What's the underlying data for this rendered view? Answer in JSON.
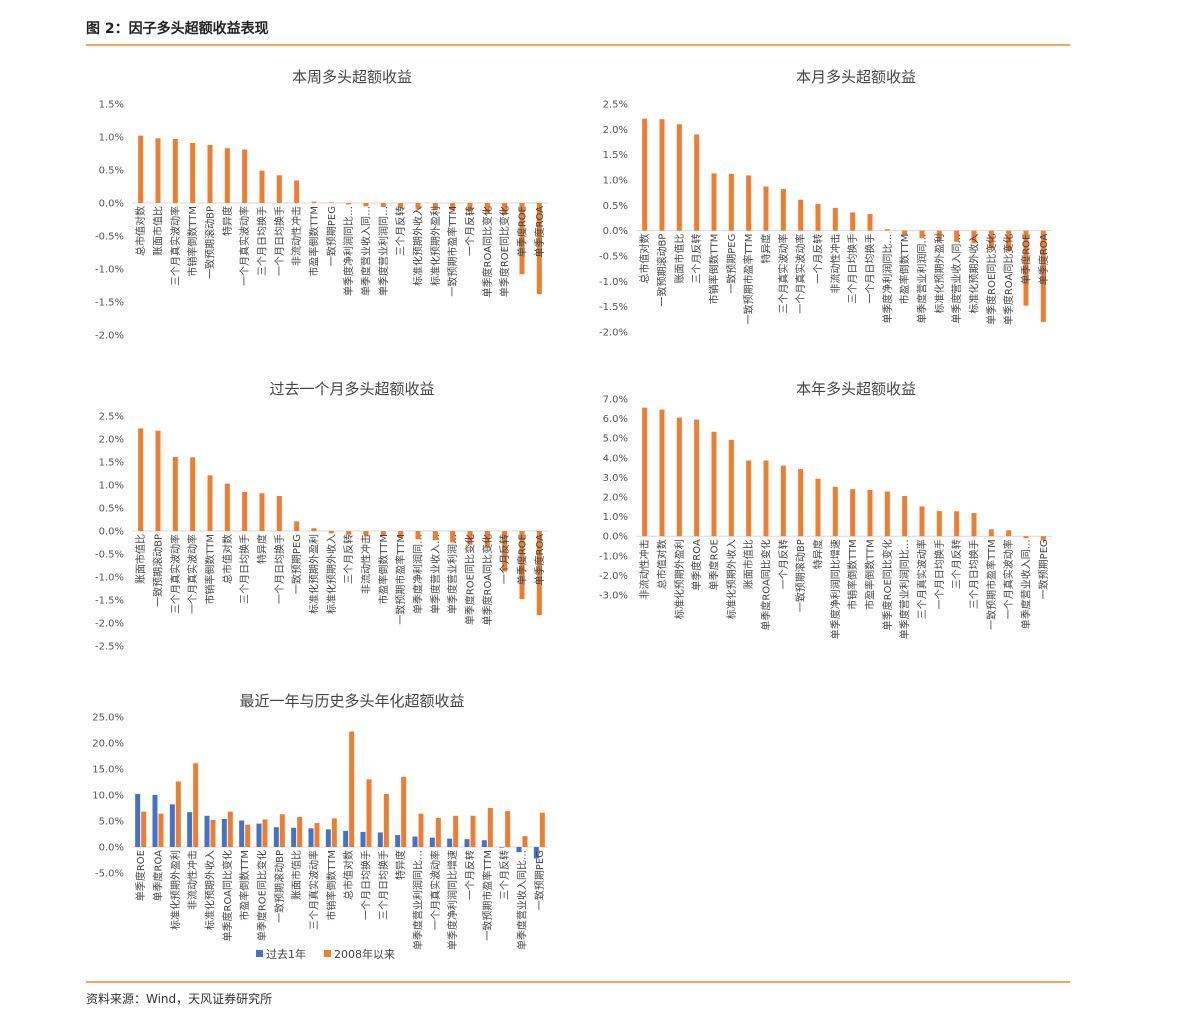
{
  "figure_title": "图 2：因子多头超额收益表现",
  "source": "资料来源：Wind，天风证券研究所",
  "colors": {
    "orange": "#ed7d31",
    "blue": "#4472c4",
    "axis": "#d9d9d9",
    "rule": "#f2a560"
  },
  "chart_data": [
    {
      "id": "weekly",
      "type": "bar",
      "title": "本周多头超额收益",
      "ylim": [
        -0.02,
        0.015
      ],
      "yticks": [
        -0.02,
        -0.015,
        -0.01,
        -0.005,
        0,
        0.005,
        0.01,
        0.015
      ],
      "tick_format": "pct1",
      "categories": [
        "总市值对数",
        "账面市值比",
        "三个月真实波动率",
        "市销率倒数TTM",
        "一致预期滚动BP",
        "特异度",
        "一个月真实波动率",
        "三个月日均换手",
        "一个月日均换手",
        "非流动性冲击",
        "市盈率倒数TTM",
        "一致预期PEG",
        "单季度净利润同比…",
        "单季度营业收入同…",
        "单季度营业利润同…",
        "三个月反转",
        "标准化预期外收入",
        "标准化预期外盈利",
        "一致预期市盈率TTM",
        "一个月反转",
        "单季度ROA同比变化",
        "单季度ROE同比变化",
        "单季度ROE",
        "单季度ROA"
      ],
      "series": [
        {
          "color": "#ed7d31",
          "values": [
            0.0102,
            0.0098,
            0.0097,
            0.0091,
            0.0088,
            0.0083,
            0.0081,
            0.0049,
            0.0042,
            0.0034,
            0.0002,
            0.0001,
            -0.0002,
            -0.0005,
            -0.0006,
            -0.0008,
            -0.0009,
            -0.001,
            -0.0011,
            -0.0013,
            -0.0015,
            -0.0018,
            -0.0108,
            -0.0138
          ]
        }
      ]
    },
    {
      "id": "monthly",
      "type": "bar",
      "title": "本月多头超额收益",
      "ylim": [
        -0.02,
        0.025
      ],
      "yticks": [
        -0.02,
        -0.015,
        -0.01,
        -0.005,
        0,
        0.005,
        0.01,
        0.015,
        0.02,
        0.025
      ],
      "tick_format": "pct1",
      "categories": [
        "总市值对数",
        "一致预期滚动BP",
        "账面市值比",
        "三个月反转",
        "市销率倒数TTM",
        "一致预期PEG",
        "一致预期市盈率TTM",
        "特异度",
        "三个月真实波动率",
        "一个月真实波动率",
        "一个月反转",
        "非流动性冲击",
        "三个月日均换手",
        "一个月日均换手",
        "单季度净利润同比…",
        "市盈率倒数TTM",
        "单季度营业利润同…",
        "标准化预期外盈利",
        "单季度营业收入同…",
        "标准化预期外收入",
        "单季度ROE同比变化",
        "单季度ROA同比变化",
        "单季度ROE",
        "单季度ROA"
      ],
      "series": [
        {
          "color": "#ed7d31",
          "values": [
            0.0221,
            0.022,
            0.021,
            0.019,
            0.0113,
            0.0112,
            0.0109,
            0.0087,
            0.0082,
            0.0061,
            0.0053,
            0.0045,
            0.0036,
            0.0033,
            0.0003,
            -0.0008,
            -0.0015,
            -0.0018,
            -0.0022,
            -0.0025,
            -0.0035,
            -0.004,
            -0.0148,
            -0.018
          ]
        }
      ]
    },
    {
      "id": "past_month",
      "type": "bar",
      "title": "过去一个月多头超额收益",
      "ylim": [
        -0.025,
        0.025
      ],
      "yticks": [
        -0.025,
        -0.02,
        -0.015,
        -0.01,
        -0.005,
        0,
        0.005,
        0.01,
        0.015,
        0.02,
        0.025
      ],
      "tick_format": "pct1",
      "categories": [
        "账面市值比",
        "一致预期滚动BP",
        "三个月真实波动率",
        "一个月真实波动率",
        "市销率倒数TTM",
        "总市值对数",
        "三个月日均换手",
        "特异度",
        "一个月日均换手",
        "一致预期PEG",
        "标准化预期外盈利",
        "标准化预期外收入",
        "三个月反转",
        "非流动性冲击",
        "市盈率倒数TTM",
        "一致预期市盈率TTM",
        "单季度净利润同…",
        "单季度营业收入…",
        "单季度营业利润…",
        "单季度ROE同比变化",
        "单季度ROA同比变化",
        "一个月反转",
        "单季度ROE",
        "单季度ROA"
      ],
      "series": [
        {
          "color": "#ed7d31",
          "values": [
            0.0223,
            0.0218,
            0.0161,
            0.016,
            0.0121,
            0.0103,
            0.0085,
            0.0082,
            0.0076,
            0.0021,
            0.0006,
            -0.0005,
            -0.0008,
            -0.001,
            -0.0011,
            -0.0015,
            -0.0018,
            -0.002,
            -0.0025,
            -0.003,
            -0.0035,
            -0.0088,
            -0.0148,
            -0.0183
          ]
        }
      ]
    },
    {
      "id": "ytd",
      "type": "bar",
      "title": "本年多头超额收益",
      "ylim": [
        -0.03,
        0.07
      ],
      "yticks": [
        -0.03,
        -0.02,
        -0.01,
        0,
        0.01,
        0.02,
        0.03,
        0.04,
        0.05,
        0.06,
        0.07
      ],
      "tick_format": "pct1",
      "categories": [
        "非流动性冲击",
        "总市值对数",
        "标准化预期外盈利",
        "单季度ROA",
        "单季度ROE",
        "标准化预期外收入",
        "账面市值比",
        "单季度ROA同比变化",
        "一个月反转",
        "一致预期滚动BP",
        "特异度",
        "单季度净利润同比增速",
        "市销率倒数TTM",
        "市盈率倒数TTM",
        "单季度ROE同比变化",
        "单季度营业利润同比…",
        "三个月真实波动率",
        "一个月日均换手",
        "三个月反转",
        "三个月日均换手",
        "一致预期市盈率TTM",
        "一个月真实波动率",
        "单季度营业收入同…",
        "一致预期PEG"
      ],
      "series": [
        {
          "color": "#ed7d31",
          "values": [
            0.0656,
            0.0646,
            0.0605,
            0.0595,
            0.0533,
            0.0492,
            0.0386,
            0.0386,
            0.036,
            0.0342,
            0.0293,
            0.0252,
            0.024,
            0.0236,
            0.0228,
            0.0205,
            0.0152,
            0.0128,
            0.0127,
            0.0118,
            0.0035,
            0.003,
            -0.001,
            -0.002
          ]
        }
      ]
    },
    {
      "id": "annualized",
      "type": "bar",
      "title": "最近一年与历史多头年化超额收益",
      "ylim": [
        -0.05,
        0.25
      ],
      "yticks": [
        -0.05,
        0,
        0.05,
        0.1,
        0.15,
        0.2,
        0.25
      ],
      "tick_format": "pct1",
      "categories": [
        "单季度ROE",
        "单季度ROA",
        "标准化预期外盈利",
        "非流动性冲击",
        "标准化预期外收入",
        "单季度ROA同比变化",
        "市盈率倒数TTM",
        "单季度ROE同比变化",
        "一致预期滚动BP",
        "账面市值比",
        "三个月真实波动率",
        "市销率倒数TTM",
        "总市值对数",
        "一个月日均换手",
        "三个月日均换手",
        "特异度",
        "单季度营业利润同比…",
        "一个月真实波动率",
        "单季度净利润同比增速",
        "一个月反转",
        "一致预期市盈率TTM",
        "三个月反转",
        "单季度营业收入同比…",
        "一致预期PEG"
      ],
      "legend": [
        "过去1年",
        "2008年以来"
      ],
      "series": [
        {
          "name": "过去1年",
          "color": "#4472c4",
          "values": [
            0.102,
            0.1,
            0.082,
            0.067,
            0.06,
            0.054,
            0.051,
            0.045,
            0.038,
            0.037,
            0.036,
            0.034,
            0.031,
            0.029,
            0.028,
            0.023,
            0.02,
            0.018,
            0.016,
            0.015,
            0.013,
            0.0,
            -0.01,
            -0.022
          ]
        },
        {
          "name": "2008年以来",
          "color": "#ed7d31",
          "values": [
            0.068,
            0.064,
            0.126,
            0.161,
            0.052,
            0.068,
            0.043,
            0.053,
            0.063,
            0.058,
            0.046,
            0.055,
            0.222,
            0.13,
            0.102,
            0.135,
            0.064,
            0.056,
            0.06,
            0.06,
            0.075,
            0.069,
            0.021,
            0.066
          ]
        }
      ]
    }
  ]
}
